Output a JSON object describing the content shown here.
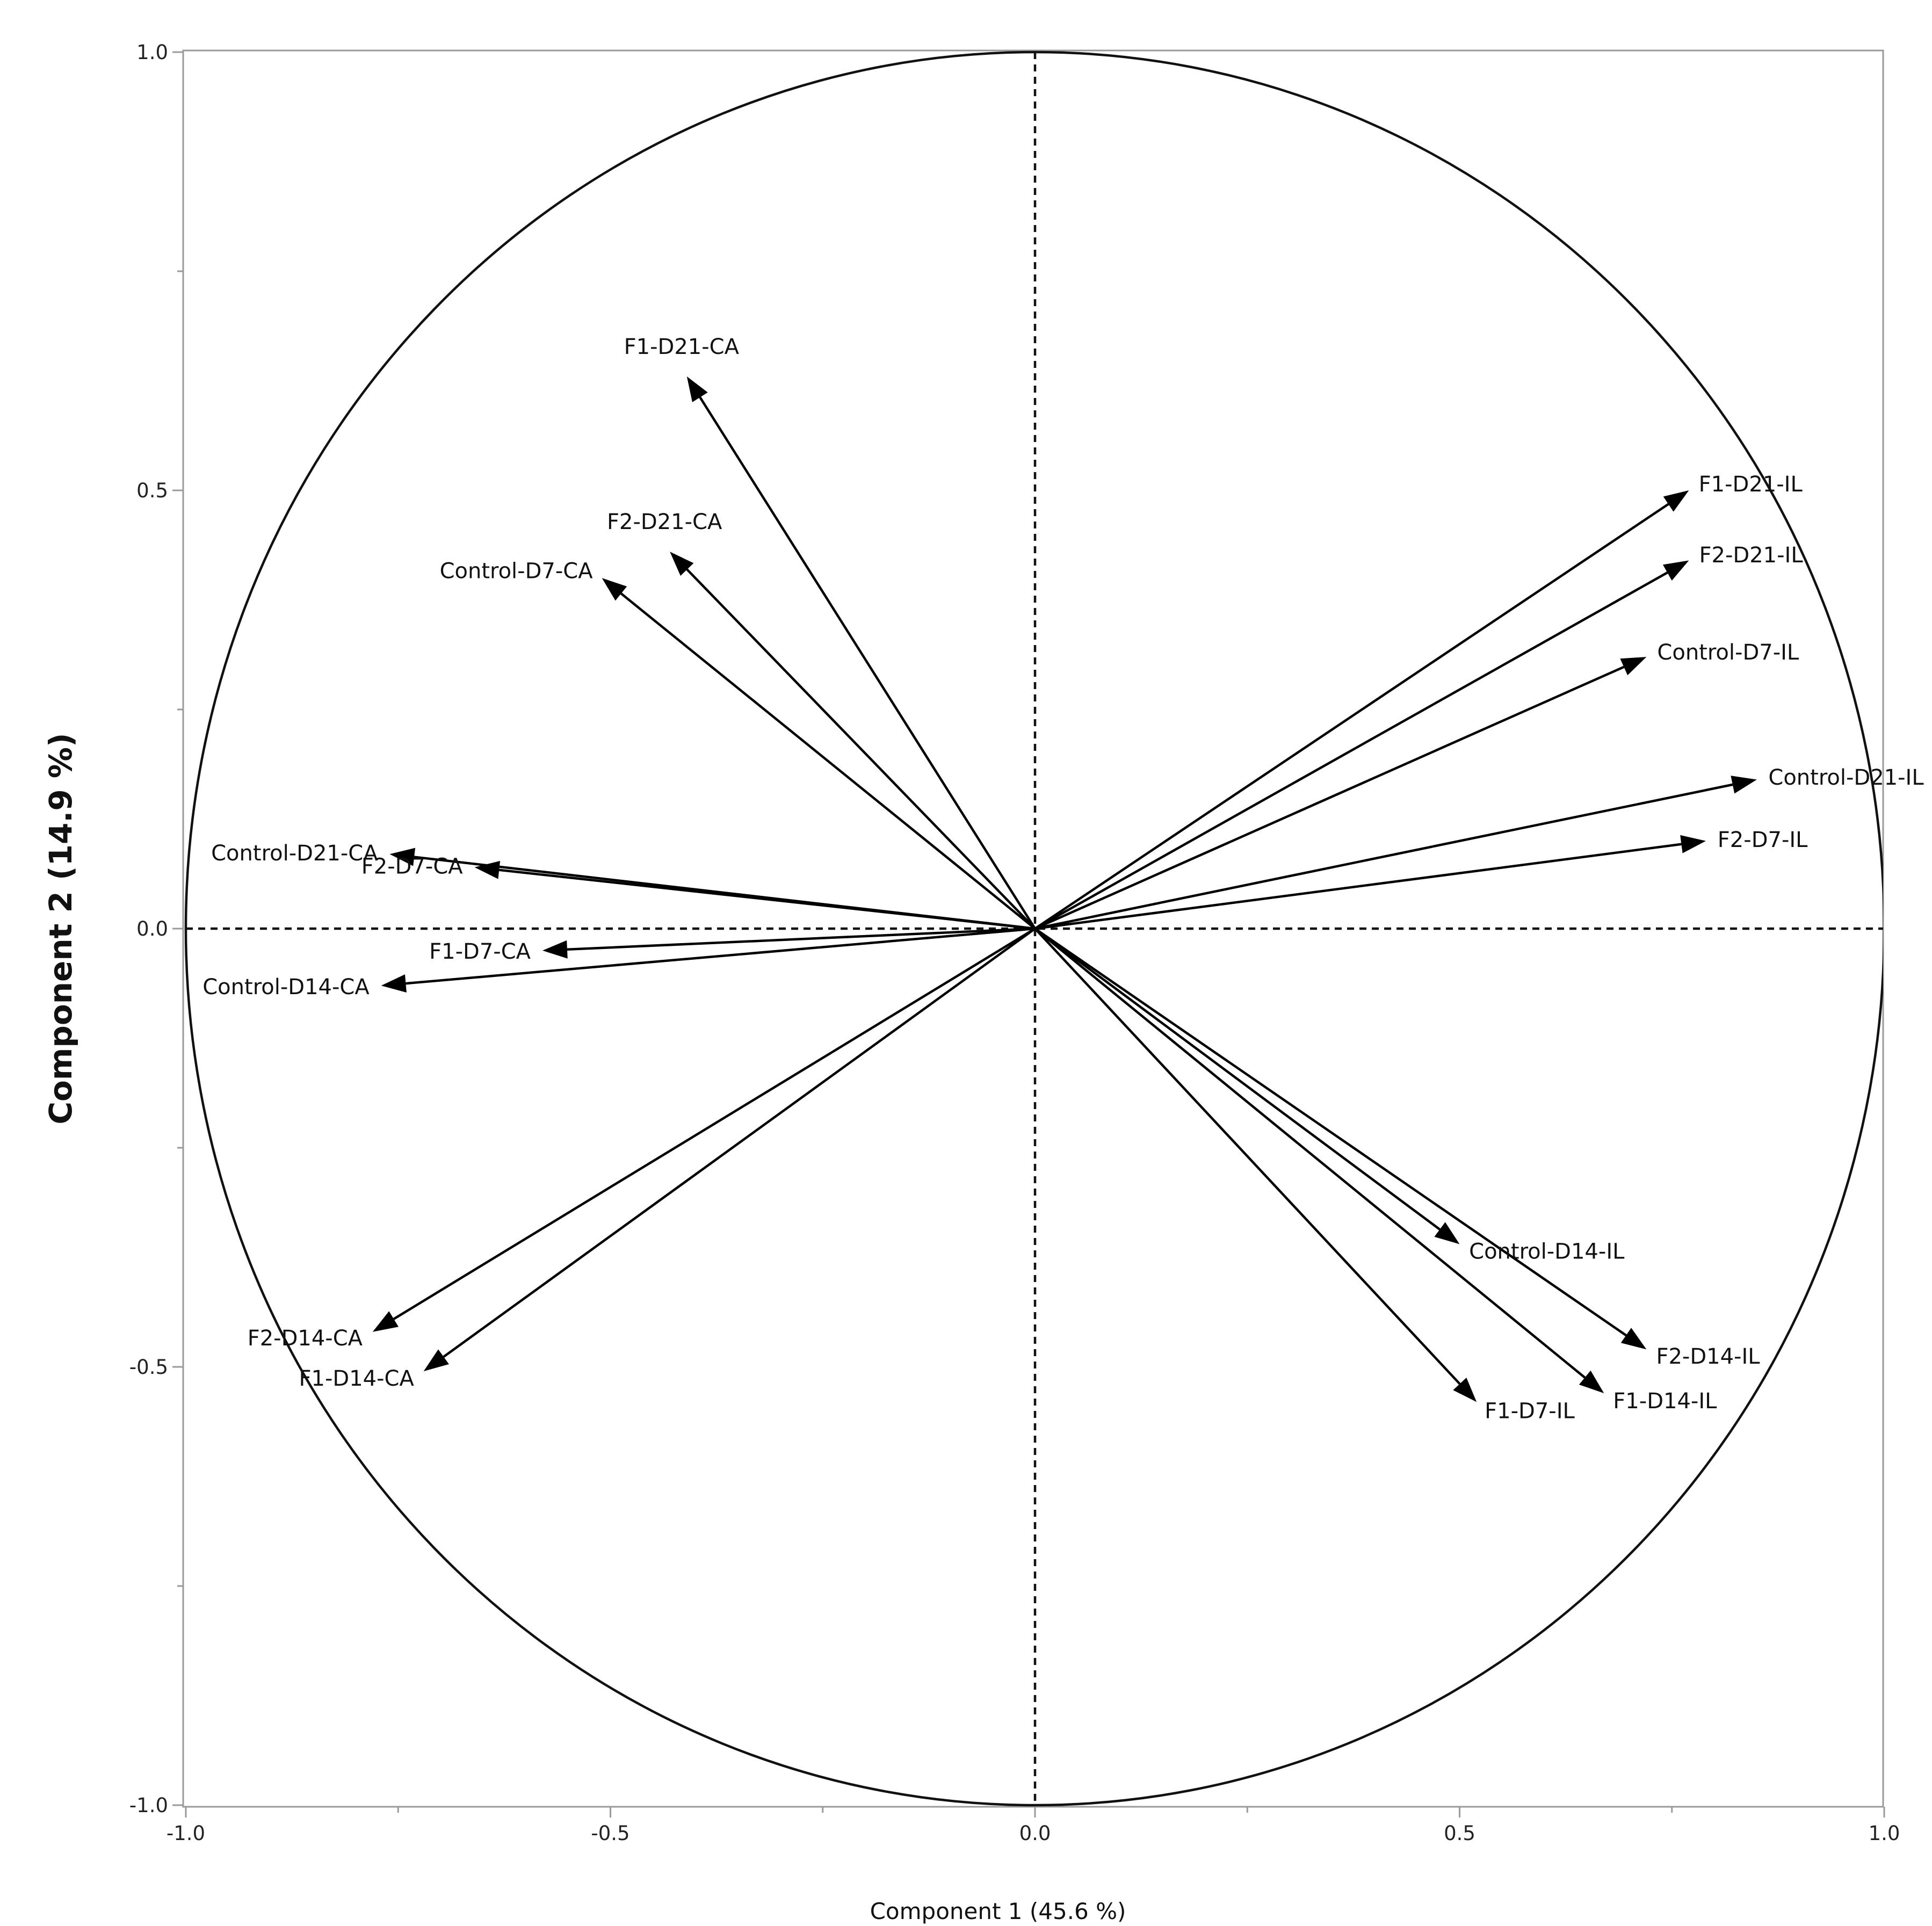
{
  "chart_data": {
    "type": "scatter",
    "subtype": "pca-correlation-circle",
    "xlabel": "Component 1  (45.6 %)",
    "ylabel": "Component 2  (14.9 %)",
    "xlim": [
      -1.0,
      1.0
    ],
    "ylim": [
      -1.0,
      1.0
    ],
    "xticks": [
      "-1.0",
      "-0.5",
      "0.0",
      "0.5",
      "1.0"
    ],
    "yticks": [
      "1.0",
      "0.5",
      "0.0",
      "-0.5",
      "-1.0"
    ],
    "grid": false,
    "unit_circle": true,
    "reference_lines": "dashed lines at x=0 and y=0",
    "vectors": [
      {
        "label": "F1-D21-CA",
        "x": -0.41,
        "y": 0.63
      },
      {
        "label": "F2-D21-CA",
        "x": -0.43,
        "y": 0.43
      },
      {
        "label": "Control-D7-CA",
        "x": -0.51,
        "y": 0.4
      },
      {
        "label": "Control-D21-CA",
        "x": -0.76,
        "y": 0.085
      },
      {
        "label": "F2-D7-CA",
        "x": -0.66,
        "y": 0.07
      },
      {
        "label": "F1-D7-CA",
        "x": -0.58,
        "y": -0.025
      },
      {
        "label": "Control-D14-CA",
        "x": -0.77,
        "y": -0.065
      },
      {
        "label": "F2-D14-CA",
        "x": -0.78,
        "y": -0.46
      },
      {
        "label": "F1-D14-CA",
        "x": -0.72,
        "y": -0.505
      },
      {
        "label": "F1-D21-IL",
        "x": 0.77,
        "y": 0.5
      },
      {
        "label": "F2-D21-IL",
        "x": 0.77,
        "y": 0.42
      },
      {
        "label": "Control-D7-IL",
        "x": 0.72,
        "y": 0.31
      },
      {
        "label": "Control-D21-IL",
        "x": 0.85,
        "y": 0.17
      },
      {
        "label": "F2-D7-IL",
        "x": 0.79,
        "y": 0.1
      },
      {
        "label": "Control-D14-IL",
        "x": 0.5,
        "y": -0.36
      },
      {
        "label": "F2-D14-IL",
        "x": 0.72,
        "y": -0.48
      },
      {
        "label": "F1-D14-IL",
        "x": 0.67,
        "y": -0.53
      },
      {
        "label": "F1-D7-IL",
        "x": 0.52,
        "y": -0.54
      }
    ]
  }
}
